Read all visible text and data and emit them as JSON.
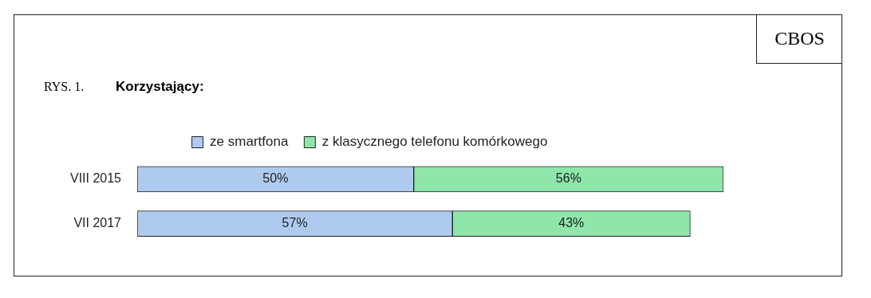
{
  "chart_data": {
    "type": "bar",
    "orientation": "horizontal",
    "stacked": true,
    "title": "Korzystający:",
    "annotations": [
      "RYS. 1.",
      "CBOS"
    ],
    "categories": [
      "VIII 2015",
      "VII 2017"
    ],
    "series": [
      {
        "name": "ze smartfona",
        "color": "#aecbef",
        "values": [
          50,
          57
        ],
        "value_labels": [
          "50%",
          "57%"
        ]
      },
      {
        "name": "z klasycznego telefonu komórkowego",
        "color": "#8ee6aa",
        "values": [
          56,
          43
        ],
        "value_labels": [
          "56%",
          "43%"
        ]
      }
    ],
    "legend": "top"
  }
}
